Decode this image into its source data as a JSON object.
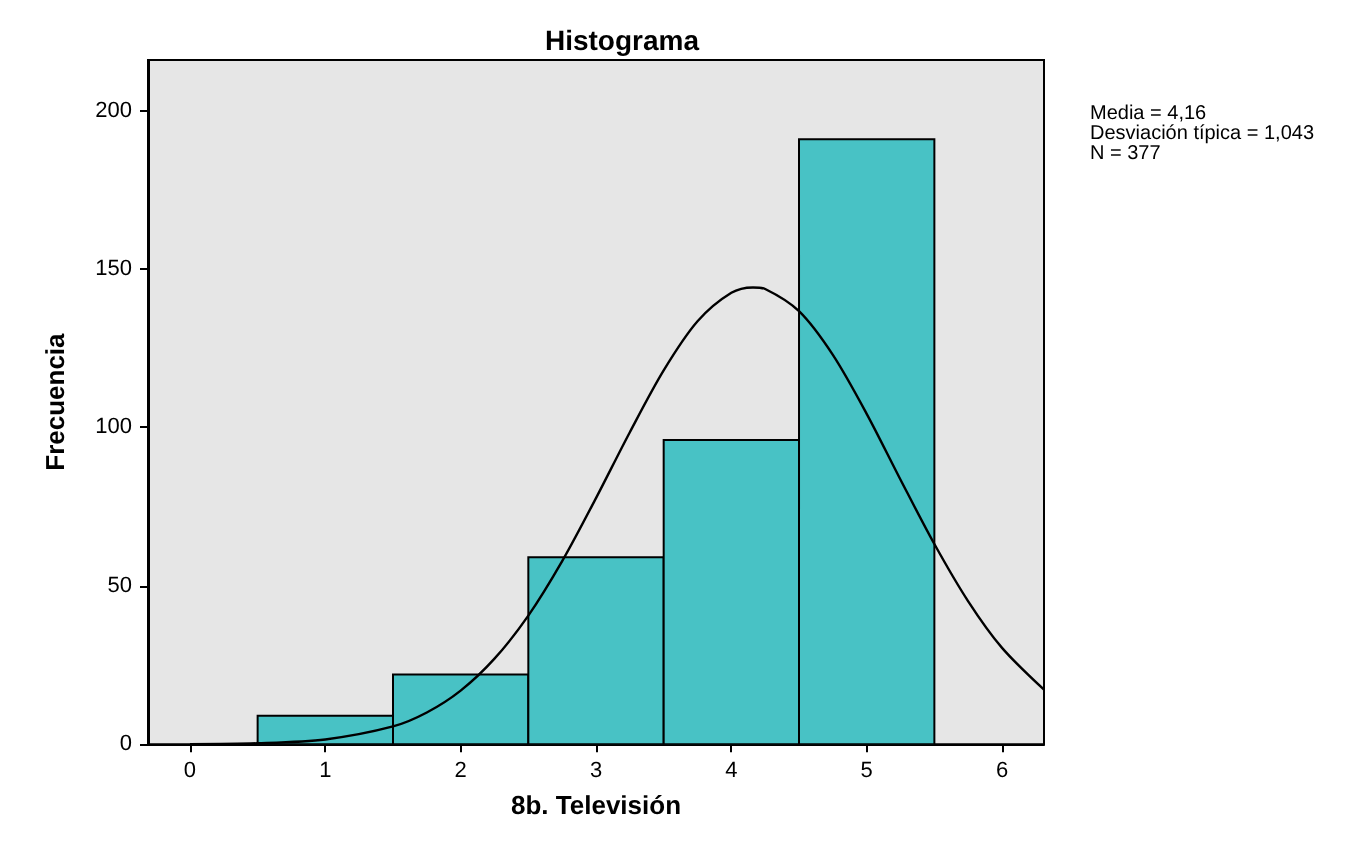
{
  "chart_data": {
    "type": "histogram",
    "title": "Histograma",
    "xlabel": "8b. Televisión",
    "ylabel": "Frecuencia",
    "bins": [
      0.5,
      1.5,
      2.5,
      3.5,
      4.5,
      5.5
    ],
    "values": [
      9,
      22,
      59,
      96,
      191
    ],
    "color": "#48c2c5",
    "series": [
      {
        "type": "line",
        "color": "#000000",
        "x": [
          0,
          0.5,
          1,
          1.5,
          1.75,
          2,
          2.25,
          2.5,
          2.75,
          3,
          3.25,
          3.5,
          3.75,
          4,
          4.16,
          4.25,
          4.5,
          4.75,
          5,
          5.25,
          5.5,
          5.75,
          6,
          6.31
        ],
        "values": [
          0,
          0.3,
          1.5,
          5.6,
          10,
          16.9,
          27,
          40.6,
          57.8,
          77.7,
          98.5,
          118,
          133.5,
          142.5,
          144.2,
          143.7,
          136.7,
          122.9,
          104.3,
          83.5,
          63.2,
          45.1,
          30.4,
          17.2
        ]
      }
    ],
    "xlim": [
      -0.31,
      6.31
    ],
    "xticks": [
      0,
      1,
      2,
      3,
      4,
      5,
      6
    ],
    "ylim": [
      0,
      216
    ],
    "yticks": [
      0,
      50,
      100,
      150,
      200
    ],
    "grid": false,
    "annotations": [
      "Media = 4,16",
      "Desviación típica = 1,043",
      "N = 377"
    ]
  }
}
